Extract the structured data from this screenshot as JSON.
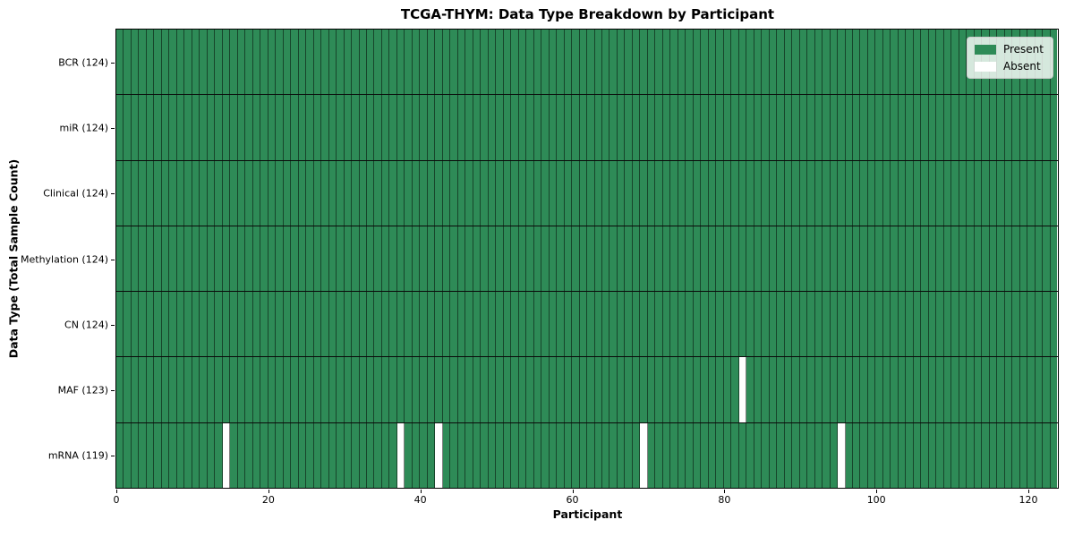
{
  "chart_data": {
    "type": "heatmap",
    "title": "TCGA-THYM: Data Type Breakdown by Participant",
    "xlabel": "Participant",
    "ylabel": "Data Type (Total Sample Count)",
    "xlim": [
      0,
      124
    ],
    "n_participants": 124,
    "x_ticks": [
      0,
      20,
      40,
      60,
      80,
      100,
      120
    ],
    "grid": false,
    "legend_position": "upper right",
    "legend": [
      {
        "label": "Present",
        "color": "#2e8b57"
      },
      {
        "label": "Absent",
        "color": "#ffffff"
      }
    ],
    "rows": [
      {
        "label": "BCR (124)",
        "data_type": "BCR",
        "count": 124,
        "absent_participants": []
      },
      {
        "label": "miR (124)",
        "data_type": "miR",
        "count": 124,
        "absent_participants": []
      },
      {
        "label": "Clinical (124)",
        "data_type": "Clinical",
        "count": 124,
        "absent_participants": []
      },
      {
        "label": "Methylation (124)",
        "data_type": "Methylation",
        "count": 124,
        "absent_participants": []
      },
      {
        "label": "CN (124)",
        "data_type": "CN",
        "count": 124,
        "absent_participants": []
      },
      {
        "label": "MAF (123)",
        "data_type": "MAF",
        "count": 123,
        "absent_participants": [
          82
        ]
      },
      {
        "label": "mRNA (119)",
        "data_type": "mRNA",
        "count": 119,
        "absent_participants": [
          14,
          37,
          42,
          69,
          95
        ]
      }
    ],
    "colors": {
      "present": "#2e8b57",
      "absent": "#ffffff",
      "cell_divider": "rgba(0,0,0,0.5)",
      "row_divider": "#0a0a0a",
      "frame": "#000000",
      "background": "#ffffff"
    }
  }
}
